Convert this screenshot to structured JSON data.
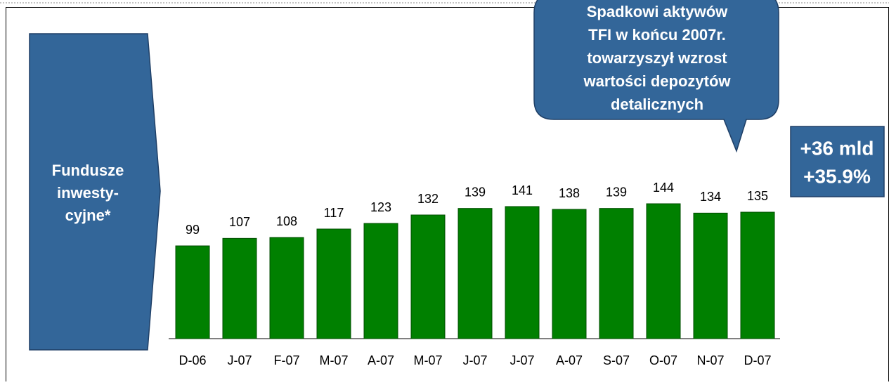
{
  "chart_data": {
    "type": "bar",
    "side_label": [
      "Fundusze",
      "inwesty-",
      "cyjne*"
    ],
    "callout": [
      "Spadkowi aktywów",
      "TFI w końcu 2007r.",
      "towarzyszył wzrost",
      "wartości depozytów",
      "detalicznych"
    ],
    "summary": [
      "+36 mld",
      "+35.9%"
    ],
    "categories": [
      "D-06",
      "J-07",
      "F-07",
      "M-07",
      "A-07",
      "M-07",
      "J-07",
      "J-07",
      "A-07",
      "S-07",
      "O-07",
      "N-07",
      "D-07"
    ],
    "values": [
      99,
      107,
      108,
      117,
      123,
      132,
      139,
      141,
      138,
      139,
      144,
      134,
      135
    ],
    "color": "#008000",
    "ylim": [
      0,
      150
    ]
  }
}
